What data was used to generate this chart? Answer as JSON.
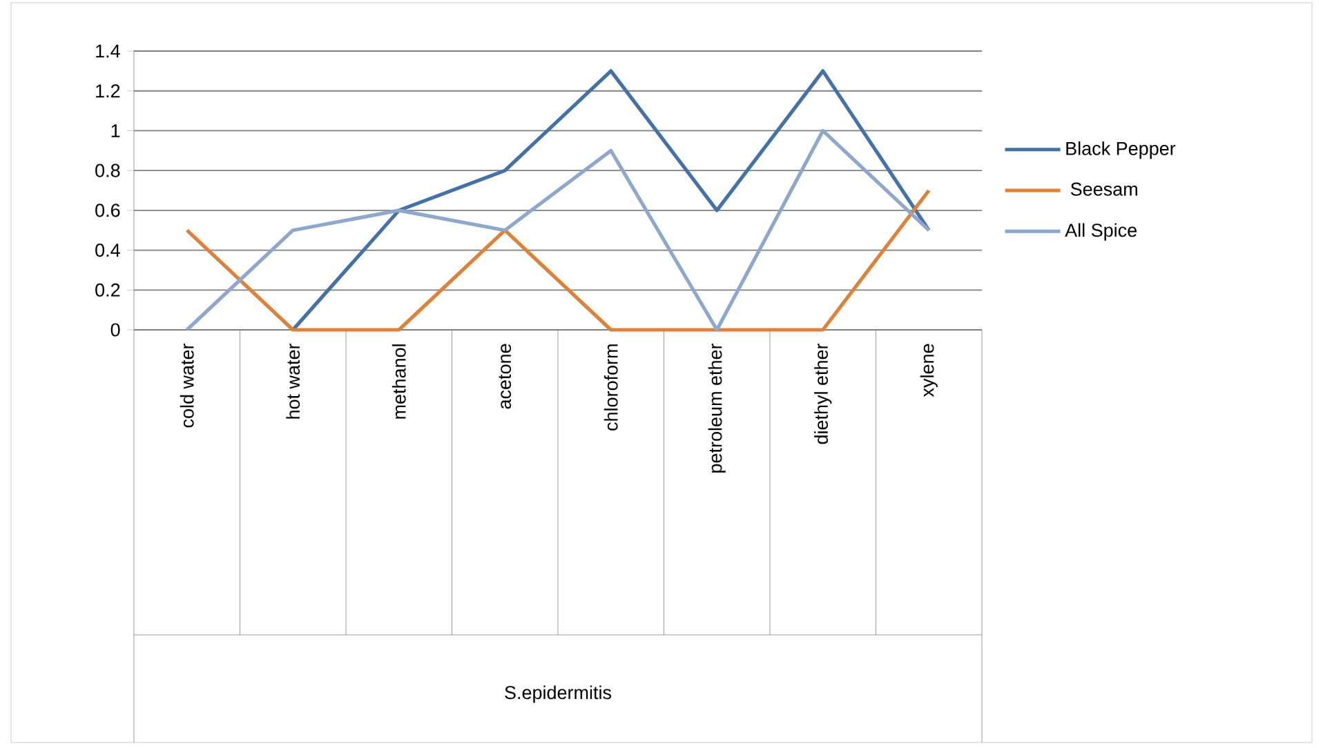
{
  "chart_data": {
    "type": "line",
    "annotations": [
      "S.epidermitis"
    ],
    "categories": [
      "cold water",
      "hot water",
      "methanol",
      "acetone",
      "chloroform",
      "petroleum ether",
      "diethyl ether",
      "xylene"
    ],
    "series": [
      {
        "name": "Black Pepper",
        "color": "#4371a8",
        "values": [
          null,
          0,
          0.6,
          0.8,
          1.3,
          0.6,
          1.3,
          0.5
        ]
      },
      {
        "name": "  Seesam",
        "color": "#df8239",
        "values": [
          0.5,
          0,
          0,
          0.5,
          0,
          0,
          0,
          0.7
        ]
      },
      {
        "name": "All Spice",
        "color": "#8ea7cc",
        "values": [
          0,
          0.5,
          0.6,
          0.5,
          0.9,
          0,
          1.0,
          0.5
        ]
      }
    ],
    "ylim": [
      0,
      1.4
    ],
    "yticks": [
      0,
      0.2,
      0.4,
      0.6,
      0.8,
      1,
      1.2,
      1.4
    ],
    "grid": "y",
    "legend": "right",
    "marker": "none",
    "line_style": "solid"
  }
}
